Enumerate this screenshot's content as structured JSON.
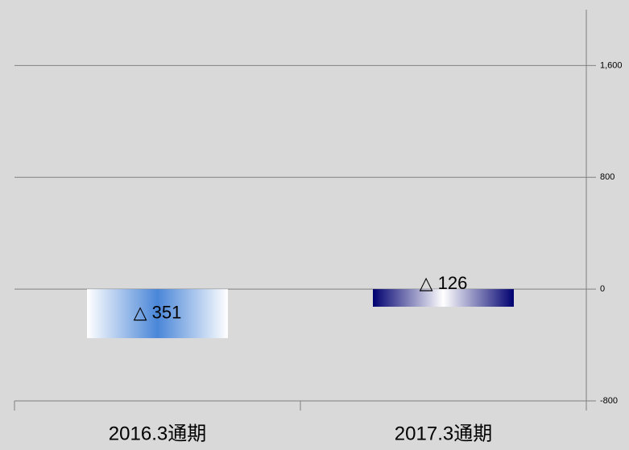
{
  "chart_data": {
    "type": "bar",
    "categories": [
      "2016.3通期",
      "2017.3通期"
    ],
    "values": [
      -351,
      -126
    ],
    "value_labels": [
      "△ 351",
      "△ 126"
    ],
    "colors": [
      "#4a86d8",
      "#000070"
    ],
    "ylim": [
      -800,
      2000
    ],
    "yticks": [
      {
        "value": 1600,
        "label": "1,600"
      },
      800,
      0,
      -800
    ],
    "grid": true
  }
}
